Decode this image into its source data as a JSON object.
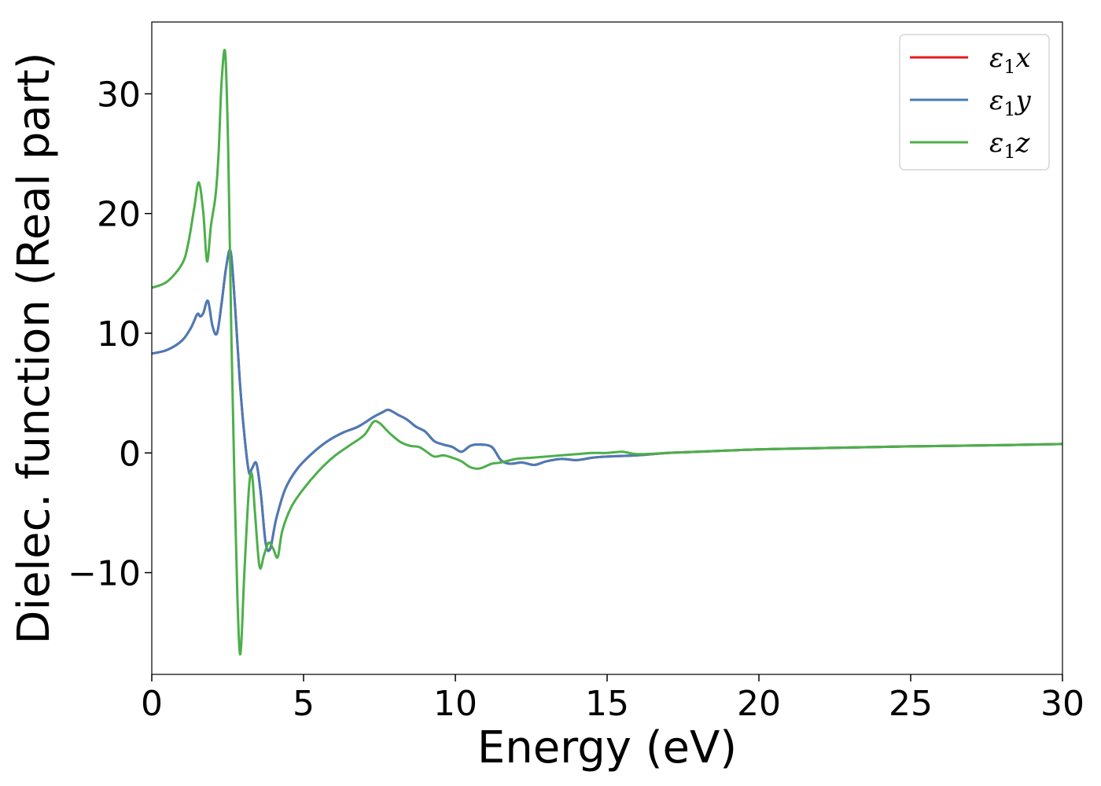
{
  "chart_data": {
    "type": "line",
    "xlabel": "Energy (eV)",
    "ylabel": "Dielec. function (Real part)",
    "xlim": [
      0,
      30
    ],
    "ylim": [
      -18.5,
      36
    ],
    "xticks": [
      0,
      5,
      10,
      15,
      20,
      25,
      30
    ],
    "xtick_labels": [
      "0",
      "5",
      "10",
      "15",
      "20",
      "25",
      "30"
    ],
    "yticks": [
      -10,
      0,
      10,
      20,
      30
    ],
    "ytick_labels": [
      "−10",
      "0",
      "10",
      "20",
      "30"
    ],
    "grid": false,
    "legend_position": "top-right",
    "series": [
      {
        "name": "ε₁x",
        "legend": {
          "symbol": "ε",
          "sub": "1",
          "var": "x"
        },
        "color": "#e41a1c",
        "x": [
          0,
          0.5,
          1.0,
          1.3,
          1.5,
          1.6,
          1.7,
          1.85,
          2.0,
          2.15,
          2.3,
          2.45,
          2.6,
          2.75,
          2.9,
          3.05,
          3.2,
          3.3,
          3.45,
          3.6,
          3.75,
          3.9,
          4.1,
          4.4,
          4.8,
          5.3,
          5.8,
          6.3,
          6.8,
          7.3,
          7.6,
          7.8,
          8.1,
          8.4,
          8.7,
          9.0,
          9.3,
          9.6,
          9.9,
          10.2,
          10.5,
          10.8,
          11.2,
          11.5,
          11.8,
          12.2,
          12.6,
          13.0,
          13.5,
          14.0,
          14.5,
          15.0,
          16.0,
          17.0,
          18.0,
          20.0,
          22.0,
          25.0,
          28.0,
          30.0
        ],
        "y": [
          8.3,
          8.6,
          9.4,
          10.5,
          11.6,
          11.4,
          11.7,
          12.7,
          10.6,
          10.0,
          12.5,
          15.5,
          16.8,
          12.0,
          6.0,
          1.5,
          -1.6,
          -1.3,
          -0.9,
          -3.6,
          -7.5,
          -8.0,
          -5.5,
          -3.0,
          -1.3,
          0.0,
          1.0,
          1.7,
          2.2,
          3.0,
          3.4,
          3.6,
          3.2,
          2.8,
          2.2,
          1.8,
          1.0,
          0.7,
          0.5,
          0.1,
          0.6,
          0.7,
          0.5,
          -0.6,
          -0.9,
          -0.8,
          -1.0,
          -0.7,
          -0.5,
          -0.6,
          -0.4,
          -0.3,
          -0.2,
          0.0,
          0.1,
          0.3,
          0.4,
          0.55,
          0.65,
          0.75
        ]
      },
      {
        "name": "ε₁y",
        "legend": {
          "symbol": "ε",
          "sub": "1",
          "var": "y"
        },
        "color": "#4a7bb7",
        "x": [
          0,
          0.5,
          1.0,
          1.3,
          1.5,
          1.6,
          1.7,
          1.85,
          2.0,
          2.15,
          2.3,
          2.45,
          2.6,
          2.75,
          2.9,
          3.05,
          3.2,
          3.3,
          3.45,
          3.6,
          3.75,
          3.9,
          4.1,
          4.4,
          4.8,
          5.3,
          5.8,
          6.3,
          6.8,
          7.3,
          7.6,
          7.8,
          8.1,
          8.4,
          8.7,
          9.0,
          9.3,
          9.6,
          9.9,
          10.2,
          10.5,
          10.8,
          11.2,
          11.5,
          11.8,
          12.2,
          12.6,
          13.0,
          13.5,
          14.0,
          14.5,
          15.0,
          16.0,
          17.0,
          18.0,
          20.0,
          22.0,
          25.0,
          28.0,
          30.0
        ],
        "y": [
          8.3,
          8.6,
          9.4,
          10.5,
          11.6,
          11.4,
          11.7,
          12.7,
          10.6,
          10.0,
          12.5,
          15.5,
          16.8,
          12.0,
          6.0,
          1.5,
          -1.6,
          -1.3,
          -0.9,
          -3.6,
          -7.5,
          -8.0,
          -5.5,
          -3.0,
          -1.3,
          0.0,
          1.0,
          1.7,
          2.2,
          3.0,
          3.4,
          3.6,
          3.2,
          2.8,
          2.2,
          1.8,
          1.0,
          0.7,
          0.5,
          0.1,
          0.6,
          0.7,
          0.5,
          -0.6,
          -0.9,
          -0.8,
          -1.0,
          -0.7,
          -0.5,
          -0.6,
          -0.4,
          -0.3,
          -0.2,
          0.0,
          0.1,
          0.3,
          0.4,
          0.55,
          0.65,
          0.75
        ]
      },
      {
        "name": "ε₁z",
        "legend": {
          "symbol": "ε",
          "sub": "1",
          "var": "z"
        },
        "color": "#4daf4a",
        "x": [
          0,
          0.5,
          1.0,
          1.2,
          1.4,
          1.55,
          1.7,
          1.82,
          1.95,
          2.1,
          2.2,
          2.3,
          2.42,
          2.52,
          2.62,
          2.72,
          2.82,
          2.92,
          3.05,
          3.2,
          3.3,
          3.4,
          3.55,
          3.7,
          3.85,
          4.0,
          4.15,
          4.3,
          4.6,
          5.0,
          5.5,
          6.0,
          6.5,
          7.0,
          7.3,
          7.5,
          7.7,
          7.9,
          8.2,
          8.5,
          8.8,
          9.0,
          9.3,
          9.6,
          9.9,
          10.2,
          10.5,
          10.8,
          11.2,
          11.5,
          12.0,
          12.5,
          13.0,
          13.5,
          14.0,
          14.5,
          15.0,
          15.5,
          16.0,
          17.0,
          18.0,
          20.0,
          22.0,
          25.0,
          28.0,
          30.0
        ],
        "y": [
          13.8,
          14.3,
          15.8,
          17.5,
          20.5,
          22.6,
          20.0,
          16.0,
          19.0,
          21.5,
          25.0,
          31.0,
          33.4,
          25.0,
          10.0,
          -2.0,
          -12.0,
          -16.8,
          -10.0,
          -3.0,
          -1.8,
          -5.0,
          -9.5,
          -8.5,
          -7.5,
          -8.0,
          -8.7,
          -6.5,
          -4.5,
          -3.0,
          -1.5,
          -0.3,
          0.6,
          1.5,
          2.6,
          2.5,
          2.0,
          1.5,
          0.9,
          0.6,
          0.5,
          0.2,
          -0.3,
          -0.2,
          -0.4,
          -0.7,
          -1.2,
          -1.3,
          -0.9,
          -0.8,
          -0.5,
          -0.4,
          -0.3,
          -0.2,
          -0.1,
          0.0,
          0.0,
          0.1,
          -0.1,
          0.0,
          0.1,
          0.3,
          0.4,
          0.55,
          0.65,
          0.75
        ]
      }
    ]
  }
}
